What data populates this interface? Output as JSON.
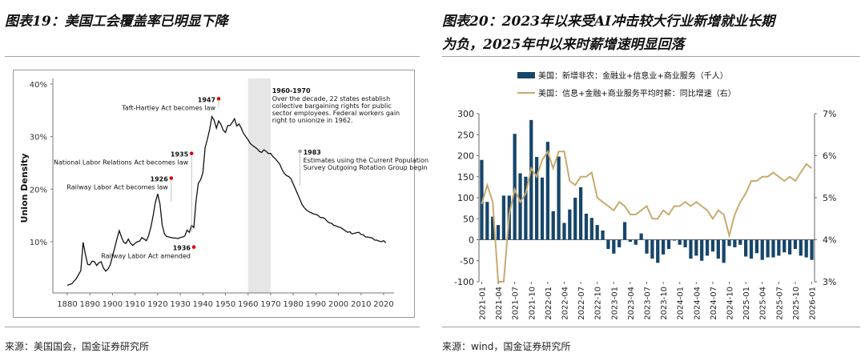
{
  "titles": {
    "left": "图表19：美国工会覆盖率已明显下降",
    "right_line1": "图表20：2023年以来受AI冲击较大行业新增就业长期",
    "right_line2": "为负，2025年中以来时薪增速明显回落"
  },
  "sources": {
    "left": "来源：美国国会，国金证券研究所",
    "right": "来源：wind，国金证券研究所"
  },
  "chart_data": [
    {
      "type": "line",
      "title": "",
      "xlabel": "",
      "ylabel": "Union Density",
      "xlim": [
        1876,
        2024
      ],
      "ylim": [
        0,
        0.42
      ],
      "x_ticks": [
        1880,
        1890,
        1900,
        1910,
        1920,
        1930,
        1940,
        1950,
        1960,
        1970,
        1980,
        1990,
        2000,
        2010,
        2020
      ],
      "x_tick_labels": [
        "1880",
        "1890",
        "1900",
        "1910",
        "1920",
        "1930",
        "1940",
        "1950",
        "1960",
        "1970",
        "1980",
        "1990",
        "2000",
        "2010",
        "2020"
      ],
      "y_ticks": [
        0.1,
        0.2,
        0.3,
        0.4
      ],
      "y_tick_labels": [
        "10%",
        "20%",
        "30%",
        "40%"
      ],
      "shaded_range": [
        1960,
        1970
      ],
      "series": [
        {
          "name": "Union Density",
          "color": "#111111",
          "points": [
            [
              1880,
              0.017
            ],
            [
              1882,
              0.02
            ],
            [
              1884,
              0.03
            ],
            [
              1886,
              0.045
            ],
            [
              1887,
              0.099
            ],
            [
              1888,
              0.076
            ],
            [
              1889,
              0.057
            ],
            [
              1890,
              0.056
            ],
            [
              1891,
              0.063
            ],
            [
              1892,
              0.062
            ],
            [
              1893,
              0.055
            ],
            [
              1894,
              0.06
            ],
            [
              1895,
              0.062
            ],
            [
              1896,
              0.05
            ],
            [
              1897,
              0.044
            ],
            [
              1898,
              0.048
            ],
            [
              1899,
              0.056
            ],
            [
              1900,
              0.072
            ],
            [
              1901,
              0.089
            ],
            [
              1902,
              0.106
            ],
            [
              1903,
              0.121
            ],
            [
              1904,
              0.109
            ],
            [
              1905,
              0.099
            ],
            [
              1906,
              0.097
            ],
            [
              1907,
              0.105
            ],
            [
              1908,
              0.097
            ],
            [
              1909,
              0.093
            ],
            [
              1910,
              0.097
            ],
            [
              1911,
              0.1
            ],
            [
              1912,
              0.101
            ],
            [
              1913,
              0.108
            ],
            [
              1914,
              0.105
            ],
            [
              1915,
              0.102
            ],
            [
              1916,
              0.112
            ],
            [
              1917,
              0.128
            ],
            [
              1918,
              0.15
            ],
            [
              1919,
              0.175
            ],
            [
              1920,
              0.191
            ],
            [
              1921,
              0.172
            ],
            [
              1922,
              0.132
            ],
            [
              1923,
              0.115
            ],
            [
              1924,
              0.11
            ],
            [
              1925,
              0.109
            ],
            [
              1926,
              0.108
            ],
            [
              1927,
              0.107
            ],
            [
              1928,
              0.107
            ],
            [
              1929,
              0.106
            ],
            [
              1930,
              0.108
            ],
            [
              1931,
              0.109
            ],
            [
              1932,
              0.111
            ],
            [
              1933,
              0.122
            ],
            [
              1934,
              0.118
            ],
            [
              1935,
              0.131
            ],
            [
              1936,
              0.127
            ],
            [
              1937,
              0.178
            ],
            [
              1938,
              0.211
            ],
            [
              1939,
              0.218
            ],
            [
              1940,
              0.231
            ],
            [
              1941,
              0.279
            ],
            [
              1942,
              0.295
            ],
            [
              1943,
              0.314
            ],
            [
              1944,
              0.338
            ],
            [
              1945,
              0.331
            ],
            [
              1946,
              0.316
            ],
            [
              1947,
              0.33
            ],
            [
              1948,
              0.323
            ],
            [
              1949,
              0.312
            ],
            [
              1950,
              0.308
            ],
            [
              1951,
              0.321
            ],
            [
              1952,
              0.321
            ],
            [
              1953,
              0.327
            ],
            [
              1954,
              0.334
            ],
            [
              1955,
              0.32
            ],
            [
              1956,
              0.324
            ],
            [
              1957,
              0.316
            ],
            [
              1958,
              0.306
            ],
            [
              1959,
              0.3
            ],
            [
              1960,
              0.294
            ],
            [
              1961,
              0.287
            ],
            [
              1962,
              0.283
            ],
            [
              1963,
              0.28
            ],
            [
              1964,
              0.277
            ],
            [
              1965,
              0.272
            ],
            [
              1966,
              0.27
            ],
            [
              1967,
              0.275
            ],
            [
              1968,
              0.272
            ],
            [
              1969,
              0.268
            ],
            [
              1970,
              0.268
            ],
            [
              1971,
              0.262
            ],
            [
              1972,
              0.258
            ],
            [
              1973,
              0.253
            ],
            [
              1974,
              0.248
            ],
            [
              1975,
              0.238
            ],
            [
              1976,
              0.23
            ],
            [
              1977,
              0.226
            ],
            [
              1978,
              0.224
            ],
            [
              1979,
              0.22
            ],
            [
              1980,
              0.21
            ],
            [
              1981,
              0.2
            ],
            [
              1982,
              0.19
            ],
            [
              1983,
              0.18
            ],
            [
              1984,
              0.17
            ],
            [
              1985,
              0.164
            ],
            [
              1986,
              0.16
            ],
            [
              1987,
              0.157
            ],
            [
              1988,
              0.155
            ],
            [
              1989,
              0.153
            ],
            [
              1990,
              0.152
            ],
            [
              1991,
              0.15
            ],
            [
              1992,
              0.146
            ],
            [
              1993,
              0.146
            ],
            [
              1994,
              0.144
            ],
            [
              1995,
              0.139
            ],
            [
              1996,
              0.136
            ],
            [
              1997,
              0.135
            ],
            [
              1998,
              0.131
            ],
            [
              1999,
              0.13
            ],
            [
              2000,
              0.128
            ],
            [
              2001,
              0.127
            ],
            [
              2002,
              0.124
            ],
            [
              2003,
              0.121
            ],
            [
              2004,
              0.118
            ],
            [
              2005,
              0.119
            ],
            [
              2006,
              0.115
            ],
            [
              2007,
              0.116
            ],
            [
              2008,
              0.117
            ],
            [
              2009,
              0.118
            ],
            [
              2010,
              0.114
            ],
            [
              2011,
              0.113
            ],
            [
              2012,
              0.109
            ],
            [
              2013,
              0.109
            ],
            [
              2014,
              0.108
            ],
            [
              2015,
              0.107
            ],
            [
              2016,
              0.103
            ],
            [
              2017,
              0.103
            ],
            [
              2018,
              0.101
            ],
            [
              2019,
              0.1
            ],
            [
              2020,
              0.102
            ],
            [
              2021,
              0.098
            ]
          ]
        }
      ],
      "annotations": [
        {
          "year": "1947",
          "text": "Taft-Hartley Act becomes law",
          "x": 1947,
          "y": 0.372,
          "color": "#e00000",
          "side": "left"
        },
        {
          "year": "1935",
          "text": "National Labor Relations Act becomes law",
          "x": 1935,
          "y": 0.268,
          "color": "#e00000",
          "side": "left"
        },
        {
          "year": "1926",
          "text": "Railway Labor Act becomes law",
          "x": 1926,
          "y": 0.221,
          "color": "#e00000",
          "side": "left"
        },
        {
          "year": "1936",
          "text": "Railway Labor Act amended",
          "x": 1936,
          "y": 0.09,
          "color": "#e00000",
          "side": "left"
        },
        {
          "year": "1983",
          "text_lines": [
            "Estimates using the Current Population",
            "Survey Outgoing Rotation Group begin"
          ],
          "x": 1983,
          "y": 0.272,
          "color": "#9a9a9a",
          "side": "right"
        }
      ],
      "note": {
        "year": "1960-1970",
        "lines": [
          "Over the decade, 22 states establish",
          "collective bargaining rights for public",
          "sector employees. Federal workers gain",
          "right to unionize in 1962."
        ]
      }
    },
    {
      "type": "bar+line",
      "title": "",
      "legend": [
        {
          "name": "美国：新增非农：金融业+信息业+商业服务（千人）",
          "color": "#17466b",
          "kind": "bar"
        },
        {
          "name": "美国：信息+金融+商业服务平均时薪：同比增速（右）",
          "color": "#c8aa6e",
          "kind": "line"
        }
      ],
      "y_left": {
        "ylim": [
          -100,
          300
        ],
        "ticks": [
          -100,
          -50,
          0,
          50,
          100,
          150,
          200,
          250,
          300
        ],
        "tick_labels": [
          "-100",
          "-50",
          "0",
          "50",
          "100",
          "150",
          "200",
          "250",
          "300"
        ]
      },
      "y_right": {
        "ylim": [
          0.03,
          0.07
        ],
        "ticks": [
          0.03,
          0.04,
          0.05,
          0.06,
          0.07
        ],
        "tick_labels": [
          "3%",
          "4%",
          "5%",
          "6%",
          "7%"
        ]
      },
      "x_tick_labels": [
        "2021-01",
        "2021-04",
        "2021-07",
        "2021-10",
        "2022-01",
        "2022-04",
        "2022-07",
        "2022-10",
        "2023-01",
        "2023-04",
        "2023-07",
        "2023-10",
        "2024-01",
        "2024-04",
        "2024-07",
        "2024-10",
        "2025-01",
        "2025-04",
        "2025-07",
        "2025-10",
        "2026-01"
      ],
      "months": [
        "2021-01",
        "2021-02",
        "2021-03",
        "2021-04",
        "2021-05",
        "2021-06",
        "2021-07",
        "2021-08",
        "2021-09",
        "2021-10",
        "2021-11",
        "2021-12",
        "2022-01",
        "2022-02",
        "2022-03",
        "2022-04",
        "2022-05",
        "2022-06",
        "2022-07",
        "2022-08",
        "2022-09",
        "2022-10",
        "2022-11",
        "2022-12",
        "2023-01",
        "2023-02",
        "2023-03",
        "2023-04",
        "2023-05",
        "2023-06",
        "2023-07",
        "2023-08",
        "2023-09",
        "2023-10",
        "2023-11",
        "2023-12",
        "2024-01",
        "2024-02",
        "2024-03",
        "2024-04",
        "2024-05",
        "2024-06",
        "2024-07",
        "2024-08",
        "2024-09",
        "2024-10",
        "2024-11",
        "2024-12",
        "2025-01",
        "2025-02",
        "2025-03",
        "2025-04",
        "2025-05",
        "2025-06",
        "2025-07",
        "2025-08",
        "2025-09",
        "2025-10",
        "2025-11",
        "2025-12",
        "2026-01"
      ],
      "series": [
        {
          "name": "美国：新增非农：金融业+信息业+商业服务（千人）",
          "axis": "left",
          "color": "#17466b",
          "values": [
            190,
            90,
            55,
            35,
            105,
            105,
            252,
            158,
            150,
            285,
            197,
            148,
            233,
            68,
            198,
            40,
            72,
            100,
            125,
            62,
            52,
            35,
            22,
            -22,
            -33,
            -18,
            42,
            -5,
            -12,
            15,
            -33,
            -45,
            -55,
            -35,
            -22,
            -2,
            -12,
            -18,
            -45,
            -38,
            -50,
            -38,
            -28,
            -45,
            -55,
            -15,
            -18,
            -12,
            -40,
            -45,
            -32,
            -48,
            -42,
            -42,
            -38,
            -30,
            -35,
            -22,
            -38,
            -42,
            -48
          ]
        },
        {
          "name": "美国：信息+金融+商业服务平均时薪：同比增速（右）",
          "axis": "right",
          "color": "#c8aa6e",
          "values": [
            0.0485,
            0.053,
            0.049,
            0.03,
            0.03,
            0.046,
            0.052,
            0.049,
            0.051,
            0.057,
            0.055,
            0.059,
            0.061,
            0.057,
            0.061,
            0.061,
            0.054,
            0.053,
            0.055,
            0.055,
            0.056,
            0.05,
            0.049,
            0.048,
            0.047,
            0.049,
            0.048,
            0.046,
            0.046,
            0.047,
            0.048,
            0.045,
            0.045,
            0.047,
            0.046,
            0.048,
            0.048,
            0.049,
            0.048,
            0.049,
            0.048,
            0.047,
            0.045,
            0.047,
            0.046,
            0.041,
            0.046,
            0.049,
            0.051,
            0.054,
            0.054,
            0.055,
            0.055,
            0.056,
            0.055,
            0.054,
            0.055,
            0.054,
            0.056,
            0.058,
            0.057
          ]
        }
      ]
    }
  ]
}
